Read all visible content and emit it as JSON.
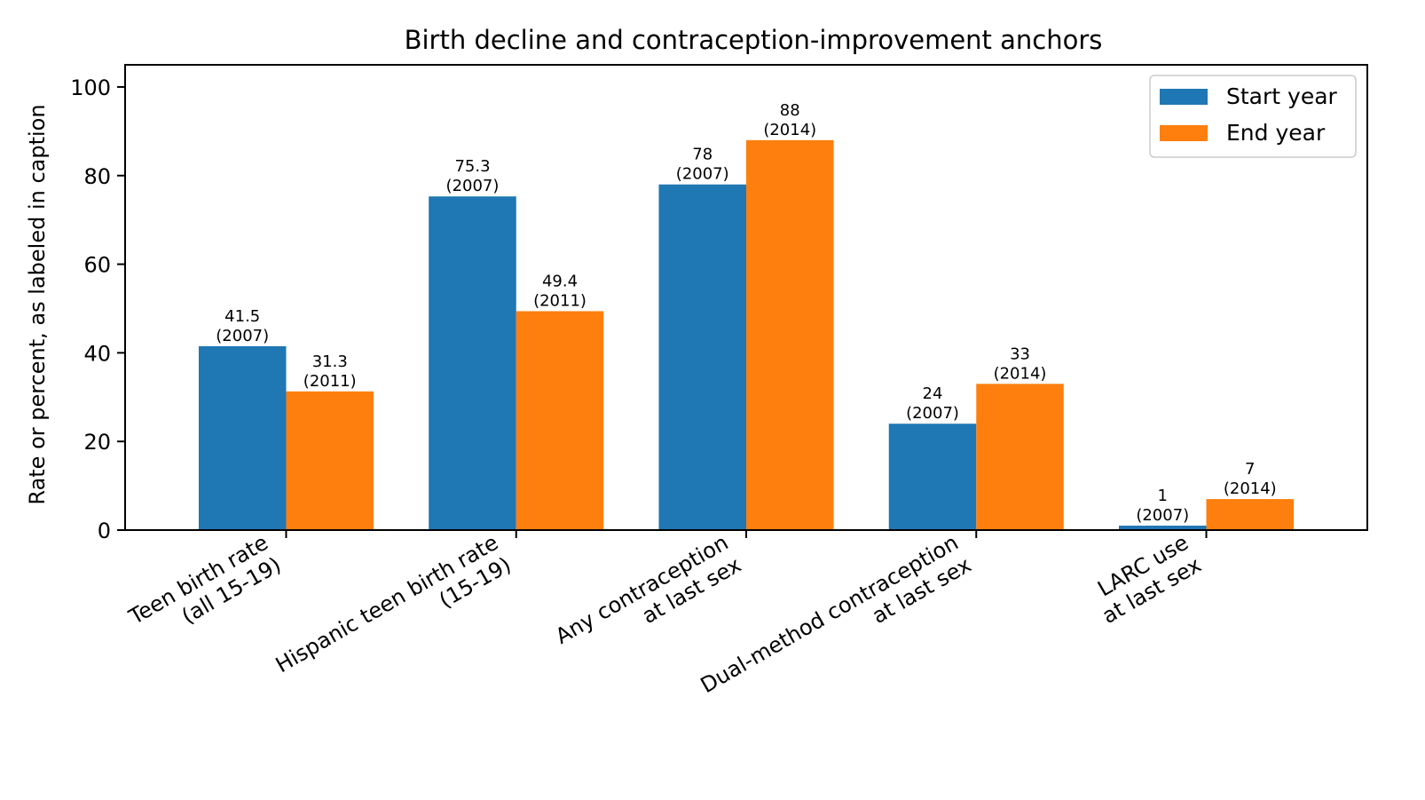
{
  "chart_data": {
    "type": "bar",
    "title": "Birth decline and contraception-improvement anchors",
    "xlabel": "",
    "ylabel": "Rate or percent, as labeled in caption",
    "ylim": [
      0,
      105
    ],
    "yticks": [
      0,
      20,
      40,
      60,
      80,
      100
    ],
    "grid": false,
    "legend_position": "top-right",
    "categories": [
      [
        "Teen birth rate",
        "(all 15-19)"
      ],
      [
        "Hispanic teen birth rate",
        "(15-19)"
      ],
      [
        "Any contraception",
        "at last sex"
      ],
      [
        "Dual-method contraception",
        "at last sex"
      ],
      [
        "LARC use",
        "at last sex"
      ]
    ],
    "series": [
      {
        "name": "Start year",
        "color": "#1f77b4",
        "values": [
          41.5,
          75.3,
          78,
          24,
          1
        ],
        "labels": [
          [
            "41.5",
            "(2007)"
          ],
          [
            "75.3",
            "(2007)"
          ],
          [
            "78",
            "(2007)"
          ],
          [
            "24",
            "(2007)"
          ],
          [
            "1",
            "(2007)"
          ]
        ]
      },
      {
        "name": "End year",
        "color": "#ff7f0e",
        "values": [
          31.3,
          49.4,
          88,
          33,
          7
        ],
        "labels": [
          [
            "31.3",
            "(2011)"
          ],
          [
            "49.4",
            "(2011)"
          ],
          [
            "88",
            "(2014)"
          ],
          [
            "33",
            "(2014)"
          ],
          [
            "7",
            "(2014)"
          ]
        ]
      }
    ]
  }
}
